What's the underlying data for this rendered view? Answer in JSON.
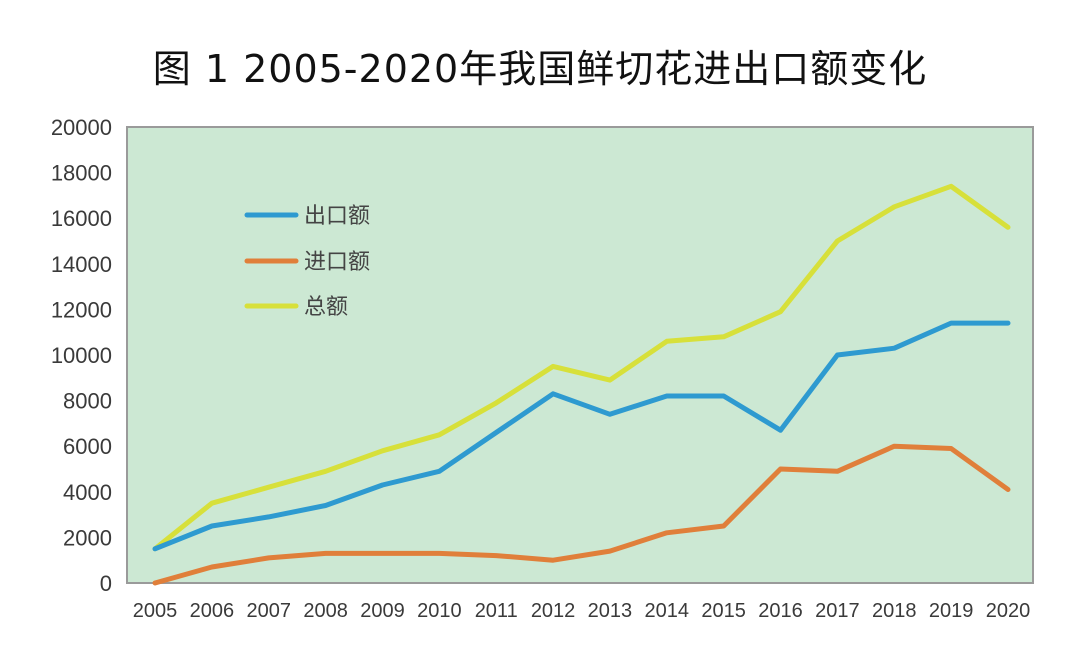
{
  "title": "图 1   2005-2020年我国鲜切花进出口额变化",
  "chart_data": {
    "type": "line",
    "title": "图 1 2005-2020年我国鲜切花进出口额变化",
    "xlabel": "",
    "ylabel": "",
    "ylim": [
      0,
      20000
    ],
    "yticks": [
      0,
      2000,
      4000,
      6000,
      8000,
      10000,
      12000,
      14000,
      16000,
      18000,
      20000
    ],
    "grid": false,
    "legend_position": "upper-left-inside",
    "plot_background": "#cce8d3",
    "categories": [
      "2005",
      "2006",
      "2007",
      "2008",
      "2009",
      "2010",
      "2011",
      "2012",
      "2013",
      "2014",
      "2015",
      "2016",
      "2017",
      "2018",
      "2019",
      "2020"
    ],
    "series": [
      {
        "name": "出口额",
        "color": "#2e9ad0",
        "values": [
          1500,
          2500,
          2900,
          3400,
          4300,
          4900,
          6600,
          8300,
          7400,
          8200,
          8200,
          6700,
          10000,
          10300,
          11400,
          11400
        ]
      },
      {
        "name": "进口额",
        "color": "#e07f3a",
        "values": [
          0,
          700,
          1100,
          1300,
          1300,
          1300,
          1200,
          1000,
          1400,
          2200,
          2500,
          5000,
          4900,
          6000,
          5900,
          4100
        ]
      },
      {
        "name": "总额",
        "color": "#d7e03a",
        "values": [
          1500,
          3500,
          4200,
          4900,
          5800,
          6500,
          7900,
          9500,
          8900,
          10600,
          10800,
          11900,
          15000,
          16500,
          17400,
          15600
        ]
      }
    ]
  }
}
